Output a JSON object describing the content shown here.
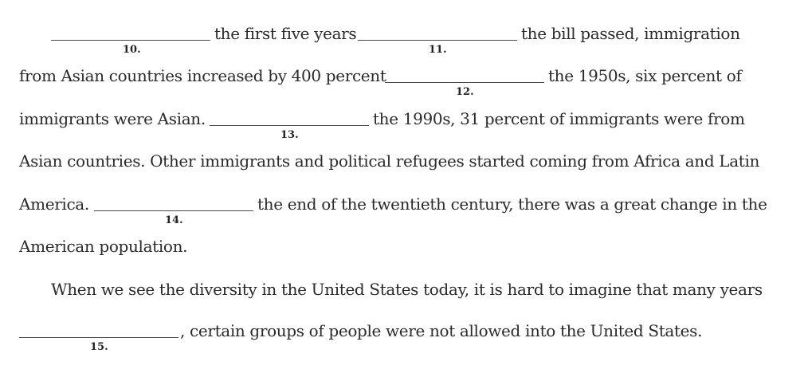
{
  "exercise": {
    "lines": [
      {
        "segments": [
          {
            "type": "blank",
            "number": "10."
          },
          {
            "type": "text",
            "text": "the first five years"
          },
          {
            "type": "blank",
            "number": "11."
          },
          {
            "type": "text",
            "text": "the bill passed, immigration"
          }
        ]
      },
      {
        "segments": [
          {
            "type": "text",
            "text": "from Asian countries increased by 400 percent"
          },
          {
            "type": "blank",
            "number": "12."
          },
          {
            "type": "text",
            "text": "the 1950s, six percent of"
          }
        ]
      },
      {
        "segments": [
          {
            "type": "text",
            "text": "immigrants were Asian."
          },
          {
            "type": "blank",
            "number": "13."
          },
          {
            "type": "text",
            "text": "the 1990s, 31 percent of immigrants were from"
          }
        ]
      },
      {
        "segments": [
          {
            "type": "text",
            "text": "Asian countries. Other immigrants and political refugees started coming from Africa and Latin"
          }
        ]
      },
      {
        "segments": [
          {
            "type": "text",
            "text": "America."
          },
          {
            "type": "blank",
            "number": "14."
          },
          {
            "type": "text",
            "text": "the end of the twentieth century, there was a great change in the"
          }
        ]
      },
      {
        "segments": [
          {
            "type": "text",
            "text": "American population."
          }
        ]
      },
      {
        "segments": [
          {
            "type": "text",
            "text": "When we see the diversity in the United States today, it is hard to imagine that many years"
          }
        ]
      },
      {
        "segments": [
          {
            "type": "blank",
            "number": "15."
          },
          {
            "type": "text",
            "text": ", certain groups of people were not allowed into the United States."
          }
        ]
      }
    ]
  }
}
